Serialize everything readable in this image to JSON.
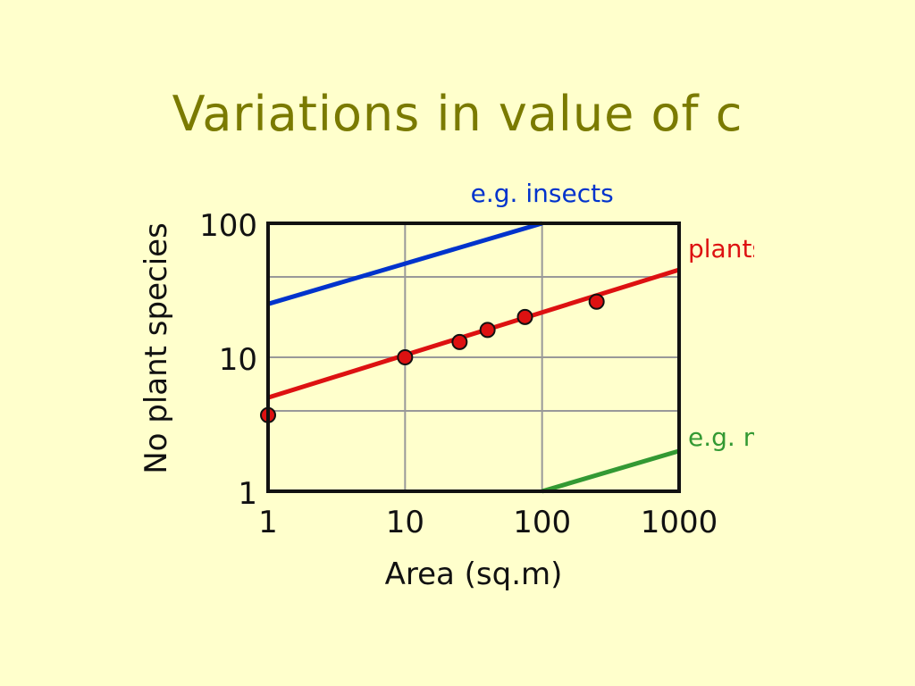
{
  "slide": {
    "title": "Variations in value of c"
  },
  "chart_data": {
    "type": "line",
    "xscale": "log",
    "yscale": "log",
    "xlim": [
      1,
      1000
    ],
    "ylim": [
      1,
      100
    ],
    "xticks": [
      "1",
      "10",
      "100",
      "1000"
    ],
    "yticks": [
      "1",
      "10",
      "100"
    ],
    "xlabel": "Area (sq.m)",
    "ylabel": "No plant species",
    "grid": true,
    "series": [
      {
        "name": "e.g. insects",
        "color": "#0033cc",
        "x": [
          1,
          100
        ],
        "y": [
          25,
          100
        ]
      },
      {
        "name": "plants",
        "color": "#dd1111",
        "x": [
          1,
          1000
        ],
        "y": [
          5,
          45
        ]
      },
      {
        "name": "e.g. mammals",
        "color": "#339933",
        "x": [
          100,
          1000
        ],
        "y": [
          1,
          2
        ]
      }
    ],
    "points": {
      "color": "#dd1111",
      "x": [
        1,
        10,
        25,
        40,
        75,
        250
      ],
      "y": [
        3.7,
        10,
        13,
        16,
        20,
        26
      ]
    }
  }
}
